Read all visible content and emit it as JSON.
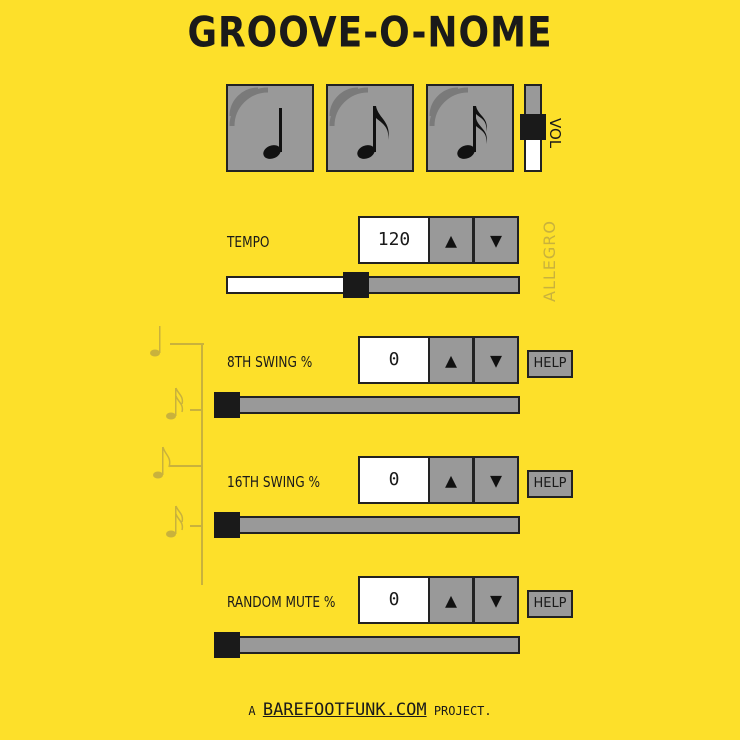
{
  "title": "GROOVE-O-NOME",
  "beat_buttons": [
    {
      "name": "quarter-note",
      "icon": "quarter-note-icon"
    },
    {
      "name": "eighth-note",
      "icon": "eighth-note-icon"
    },
    {
      "name": "sixteenth-note",
      "icon": "sixteenth-note-icon"
    }
  ],
  "volume": {
    "label": "VOL",
    "level": 0.55
  },
  "tempo": {
    "label": "TEMPO",
    "value": "120",
    "marking": "ALLEGRO",
    "slider_fraction": 0.44
  },
  "eighth_swing": {
    "label": "8TH SWING %",
    "value": "0",
    "help_label": "HELP",
    "slider_fraction": 0
  },
  "sixteenth_swing": {
    "label": "16TH SWING %",
    "value": "0",
    "help_label": "HELP",
    "slider_fraction": 0
  },
  "random_mute": {
    "label": "RANDOM MUTE %",
    "value": "0",
    "help_label": "HELP",
    "slider_fraction": 0
  },
  "arrows": {
    "up": "▲",
    "down": "▼"
  },
  "footer": {
    "prefix": "A",
    "link": "BAREFOOTFUNK.COM",
    "suffix": "PROJECT."
  },
  "colors": {
    "background": "#fde02a",
    "control_gray": "#999999",
    "dark": "#1a1a1a",
    "faded_text": "#c9b23c"
  }
}
